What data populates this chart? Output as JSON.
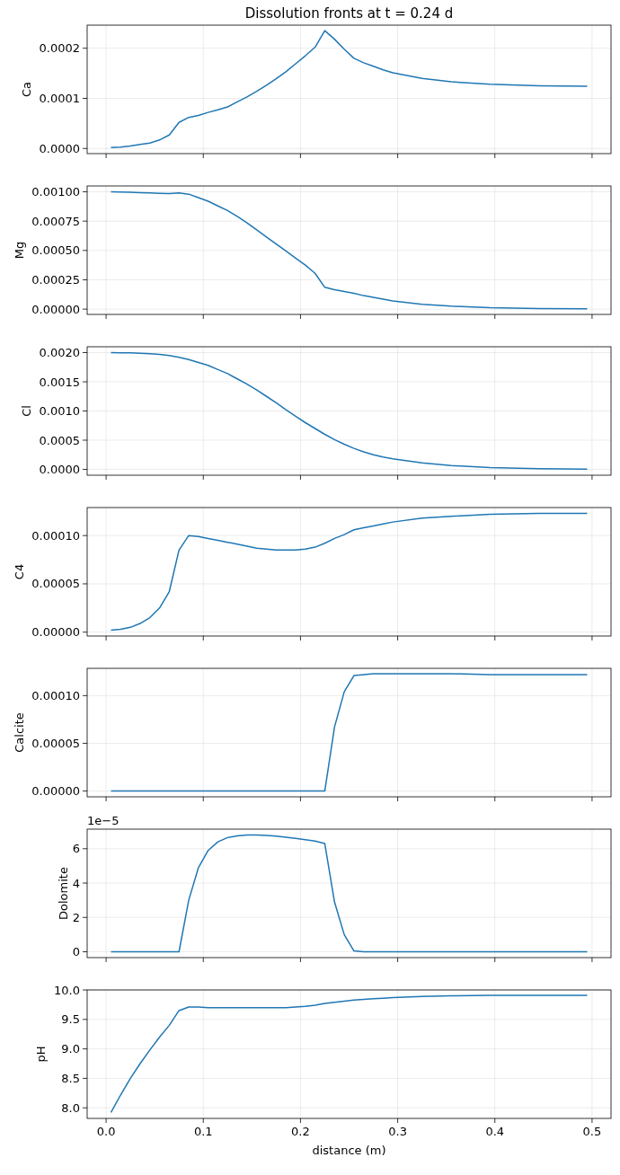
{
  "chart_data": [
    {
      "type": "line",
      "title": "Dissolution fronts at t = 0.24 d",
      "ylabel": "Ca",
      "grid": true,
      "tick_labels": "y",
      "xlim": [
        -0.0195,
        0.5195
      ],
      "xticks": [
        0,
        0.1,
        0.2,
        0.3,
        0.4,
        0.5
      ],
      "ylim": [
        -1.02e-05,
        0.000246
      ],
      "yticks": [
        {
          "value": 0,
          "label": "0.0000"
        },
        {
          "value": 0.0001,
          "label": "0.0001"
        },
        {
          "value": 0.0002,
          "label": "0.0002"
        }
      ],
      "x": [
        0.005,
        0.015,
        0.025,
        0.035,
        0.045,
        0.055,
        0.065,
        0.075,
        0.085,
        0.095,
        0.105,
        0.115,
        0.125,
        0.135,
        0.145,
        0.155,
        0.165,
        0.175,
        0.185,
        0.195,
        0.205,
        0.215,
        0.225,
        0.235,
        0.245,
        0.255,
        0.265,
        0.275,
        0.285,
        0.295,
        0.325,
        0.355,
        0.395,
        0.445,
        0.495
      ],
      "series": [
        {
          "color": "#1f77b4",
          "values": [
            2e-06,
            3e-06,
            5e-06,
            8e-06,
            1.1e-05,
            1.7e-05,
            2.7e-05,
            5.2e-05,
            6.2e-05,
            6.6e-05,
            7.2e-05,
            7.7e-05,
            8.3e-05,
            9.3e-05,
            0.000103,
            0.000114,
            0.000126,
            0.000139,
            0.000153,
            0.000169,
            0.000185,
            0.000202,
            0.000235,
            0.000218,
            0.000198,
            0.00018,
            0.000171,
            0.000164,
            0.000157,
            0.000151,
            0.00014,
            0.000133,
            0.000128,
            0.000125,
            0.000124
          ]
        }
      ]
    },
    {
      "type": "line",
      "ylabel": "Mg",
      "grid": true,
      "tick_labels": "y",
      "xlim": [
        -0.0195,
        0.5195
      ],
      "xticks": [
        0,
        0.1,
        0.2,
        0.3,
        0.4,
        0.5
      ],
      "ylim": [
        -4.5e-05,
        0.00105
      ],
      "yticks": [
        {
          "value": 0,
          "label": "0.00000"
        },
        {
          "value": 0.00025,
          "label": "0.00025"
        },
        {
          "value": 0.0005,
          "label": "0.00050"
        },
        {
          "value": 0.00075,
          "label": "0.00075"
        },
        {
          "value": 0.001,
          "label": "0.00100"
        }
      ],
      "x": [
        0.005,
        0.015,
        0.025,
        0.035,
        0.045,
        0.055,
        0.065,
        0.075,
        0.085,
        0.095,
        0.105,
        0.115,
        0.125,
        0.135,
        0.145,
        0.155,
        0.165,
        0.175,
        0.185,
        0.195,
        0.205,
        0.215,
        0.225,
        0.235,
        0.245,
        0.255,
        0.265,
        0.275,
        0.285,
        0.295,
        0.325,
        0.355,
        0.395,
        0.445,
        0.495
      ],
      "series": [
        {
          "color": "#1f77b4",
          "values": [
            0.001,
            0.000998,
            0.000996,
            0.000993,
            0.00099,
            0.000987,
            0.000985,
            0.00099,
            0.00098,
            0.00095,
            0.00092,
            0.00088,
            0.00084,
            0.00079,
            0.000735,
            0.000675,
            0.000615,
            0.000555,
            0.000495,
            0.000435,
            0.000375,
            0.000305,
            0.000186,
            0.000165,
            0.00015,
            0.000135,
            0.000115,
            0.0001,
            8.5e-05,
            7e-05,
            4.2e-05,
            2.5e-05,
            1.2e-05,
            5e-06,
            3e-06
          ]
        }
      ]
    },
    {
      "type": "line",
      "ylabel": "Cl",
      "grid": true,
      "tick_labels": "y",
      "xlim": [
        -0.0195,
        0.5195
      ],
      "xticks": [
        0,
        0.1,
        0.2,
        0.3,
        0.4,
        0.5
      ],
      "ylim": [
        -0.0001,
        0.0021
      ],
      "yticks": [
        {
          "value": 0,
          "label": "0.0000"
        },
        {
          "value": 0.0005,
          "label": "0.0005"
        },
        {
          "value": 0.001,
          "label": "0.0010"
        },
        {
          "value": 0.0015,
          "label": "0.0015"
        },
        {
          "value": 0.002,
          "label": "0.0020"
        }
      ],
      "x": [
        0.005,
        0.015,
        0.025,
        0.035,
        0.045,
        0.055,
        0.065,
        0.075,
        0.085,
        0.095,
        0.105,
        0.115,
        0.125,
        0.135,
        0.145,
        0.155,
        0.165,
        0.175,
        0.185,
        0.195,
        0.205,
        0.215,
        0.225,
        0.235,
        0.245,
        0.255,
        0.265,
        0.275,
        0.285,
        0.295,
        0.325,
        0.355,
        0.395,
        0.445,
        0.495
      ],
      "series": [
        {
          "color": "#1f77b4",
          "values": [
            0.002,
            0.001998,
            0.001995,
            0.00199,
            0.00198,
            0.00197,
            0.00195,
            0.00192,
            0.00188,
            0.00183,
            0.00178,
            0.00171,
            0.00164,
            0.00155,
            0.00146,
            0.00136,
            0.00125,
            0.00114,
            0.00102,
            0.00091,
            0.0008,
            0.0007,
            0.0006,
            0.00051,
            0.00043,
            0.00036,
            0.0003,
            0.00025,
            0.00021,
            0.00018,
            0.00011,
            6.5e-05,
            3e-05,
            1e-05,
            2e-06
          ]
        }
      ]
    },
    {
      "type": "line",
      "ylabel": "C4",
      "grid": true,
      "tick_labels": "y",
      "xlim": [
        -0.0195,
        0.5195
      ],
      "xticks": [
        0,
        0.1,
        0.2,
        0.3,
        0.4,
        0.5
      ],
      "ylim": [
        -4e-06,
        0.000129
      ],
      "yticks": [
        {
          "value": 0,
          "label": "0.00000"
        },
        {
          "value": 5e-05,
          "label": "0.00005"
        },
        {
          "value": 0.0001,
          "label": "0.00010"
        }
      ],
      "x": [
        0.005,
        0.015,
        0.025,
        0.035,
        0.045,
        0.055,
        0.065,
        0.075,
        0.085,
        0.095,
        0.105,
        0.115,
        0.125,
        0.135,
        0.145,
        0.155,
        0.165,
        0.175,
        0.185,
        0.195,
        0.205,
        0.215,
        0.225,
        0.235,
        0.245,
        0.255,
        0.265,
        0.275,
        0.285,
        0.295,
        0.325,
        0.355,
        0.395,
        0.445,
        0.495
      ],
      "series": [
        {
          "color": "#1f77b4",
          "values": [
            2e-06,
            3e-06,
            5e-06,
            9e-06,
            1.5e-05,
            2.5e-05,
            4.2e-05,
            8.5e-05,
            0.0001,
            9.9e-05,
            9.7e-05,
            9.5e-05,
            9.3e-05,
            9.1e-05,
            8.9e-05,
            8.7e-05,
            8.6e-05,
            8.5e-05,
            8.5e-05,
            8.5e-05,
            8.6e-05,
            8.8e-05,
            9.2e-05,
            9.7e-05,
            0.000101,
            0.000106,
            0.000108,
            0.00011,
            0.000112,
            0.000114,
            0.000118,
            0.00012,
            0.000122,
            0.000123,
            0.000123
          ]
        }
      ]
    },
    {
      "type": "line",
      "ylabel": "Calcite",
      "grid": true,
      "tick_labels": "y",
      "xlim": [
        -0.0195,
        0.5195
      ],
      "xticks": [
        0,
        0.1,
        0.2,
        0.3,
        0.4,
        0.5
      ],
      "ylim": [
        -6.1e-06,
        0.0001286
      ],
      "yticks": [
        {
          "value": 0,
          "label": "0.00000"
        },
        {
          "value": 5e-05,
          "label": "0.00005"
        },
        {
          "value": 0.0001,
          "label": "0.00010"
        }
      ],
      "x": [
        0.005,
        0.015,
        0.025,
        0.035,
        0.045,
        0.055,
        0.065,
        0.075,
        0.085,
        0.095,
        0.105,
        0.115,
        0.125,
        0.135,
        0.145,
        0.155,
        0.165,
        0.175,
        0.185,
        0.195,
        0.205,
        0.215,
        0.225,
        0.235,
        0.245,
        0.255,
        0.265,
        0.275,
        0.285,
        0.295,
        0.325,
        0.355,
        0.395,
        0.445,
        0.495
      ],
      "series": [
        {
          "color": "#1f77b4",
          "values": [
            0,
            0,
            0,
            0,
            0,
            0,
            0,
            0,
            0,
            0,
            0,
            0,
            0,
            0,
            0,
            0,
            0,
            0,
            0,
            0,
            0,
            0,
            0,
            6.7e-05,
            0.000104,
            0.000121,
            0.000122,
            0.000123,
            0.000123,
            0.000123,
            0.000123,
            0.000123,
            0.000122,
            0.000122,
            0.000122
          ]
        }
      ]
    },
    {
      "type": "line",
      "ylabel": "Dolomite",
      "annotations": [
        "1e−5"
      ],
      "grid": true,
      "tick_labels": "y",
      "xlim": [
        -0.0195,
        0.5195
      ],
      "xticks": [
        0,
        0.1,
        0.2,
        0.3,
        0.4,
        0.5
      ],
      "ylim": [
        -0.34,
        7.14
      ],
      "yticks": [
        0,
        2,
        4,
        6
      ],
      "x": [
        0.005,
        0.015,
        0.025,
        0.035,
        0.045,
        0.055,
        0.065,
        0.075,
        0.085,
        0.095,
        0.105,
        0.115,
        0.125,
        0.135,
        0.145,
        0.155,
        0.165,
        0.175,
        0.185,
        0.195,
        0.205,
        0.215,
        0.225,
        0.235,
        0.245,
        0.255,
        0.265,
        0.275,
        0.285,
        0.295,
        0.325,
        0.355,
        0.395,
        0.445,
        0.495
      ],
      "series": [
        {
          "color": "#1f77b4",
          "values": [
            0,
            0,
            0,
            0,
            0,
            0,
            0,
            0,
            3.0,
            4.9,
            5.9,
            6.4,
            6.65,
            6.75,
            6.8,
            6.8,
            6.78,
            6.73,
            6.67,
            6.6,
            6.53,
            6.45,
            6.3,
            2.9,
            1.0,
            0.05,
            0,
            0,
            0,
            0,
            0,
            0,
            0,
            0,
            0
          ]
        }
      ]
    },
    {
      "type": "line",
      "ylabel": "pH",
      "xlabel": "distance (m)",
      "grid": true,
      "xlim": [
        -0.0195,
        0.5195
      ],
      "xticks": [
        {
          "value": 0,
          "label": "0.0"
        },
        {
          "value": 0.1,
          "label": "0.1"
        },
        {
          "value": 0.2,
          "label": "0.2"
        },
        {
          "value": 0.3,
          "label": "0.3"
        },
        {
          "value": 0.4,
          "label": "0.4"
        },
        {
          "value": 0.5,
          "label": "0.5"
        }
      ],
      "ylim": [
        7.82,
        10.0
      ],
      "yticks": [
        {
          "value": 8,
          "label": "8.0"
        },
        {
          "value": 8.5,
          "label": "8.5"
        },
        {
          "value": 9,
          "label": "9.0"
        },
        {
          "value": 9.5,
          "label": "9.5"
        },
        {
          "value": 10,
          "label": "10.0"
        }
      ],
      "x": [
        0.005,
        0.015,
        0.025,
        0.035,
        0.045,
        0.055,
        0.065,
        0.075,
        0.085,
        0.095,
        0.105,
        0.115,
        0.125,
        0.135,
        0.145,
        0.155,
        0.165,
        0.175,
        0.185,
        0.195,
        0.205,
        0.215,
        0.225,
        0.235,
        0.245,
        0.255,
        0.265,
        0.275,
        0.285,
        0.295,
        0.325,
        0.355,
        0.395,
        0.445,
        0.495
      ],
      "series": [
        {
          "color": "#1f77b4",
          "values": [
            7.92,
            8.22,
            8.5,
            8.75,
            8.98,
            9.2,
            9.4,
            9.65,
            9.71,
            9.71,
            9.7,
            9.7,
            9.7,
            9.7,
            9.7,
            9.7,
            9.7,
            9.7,
            9.7,
            9.71,
            9.72,
            9.74,
            9.77,
            9.79,
            9.81,
            9.83,
            9.84,
            9.85,
            9.86,
            9.87,
            9.89,
            9.9,
            9.91,
            9.91,
            9.91
          ]
        }
      ]
    }
  ]
}
